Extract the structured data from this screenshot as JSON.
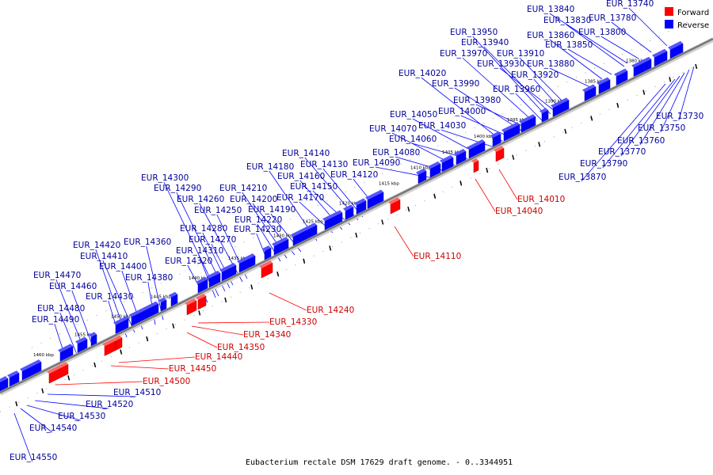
{
  "caption": "Eubacterium rectale DSM 17629 draft genome. - 0..3344951",
  "legend": [
    {
      "label": "Forward",
      "color": "#ff0000"
    },
    {
      "label": "Reverse",
      "color": "#0000ff"
    }
  ],
  "colors": {
    "forward": "#ff0000",
    "reverse": "#0000ff",
    "forward_label": "#cc0000",
    "reverse_label": "#000099",
    "backbone": "#777777"
  },
  "scale": [
    "1380 kbp",
    "1385 kbp",
    "1390 kbp",
    "1395 kbp",
    "1400 kbp",
    "1405 kbp",
    "1410 kbp",
    "1415 kbp",
    "1420 kbp",
    "1425 kbp",
    "1430 kbp",
    "1435 kbp",
    "1440 kbp",
    "1445 kbp",
    "1450 kbp",
    "1455 kbp",
    "1460 kbp"
  ],
  "reverse_genes": [
    "EUR_13740",
    "EUR_13780",
    "EUR_13800",
    "EUR_13830",
    "EUR_13840",
    "EUR_13850",
    "EUR_13860",
    "EUR_13880",
    "EUR_13910",
    "EUR_13920",
    "EUR_13930",
    "EUR_13940",
    "EUR_13950",
    "EUR_13960",
    "EUR_13970",
    "EUR_13980",
    "EUR_13990",
    "EUR_14000",
    "EUR_14020",
    "EUR_14030",
    "EUR_14050",
    "EUR_14060",
    "EUR_14070",
    "EUR_14080",
    "EUR_14090",
    "EUR_14120",
    "EUR_14130",
    "EUR_14140",
    "EUR_14150",
    "EUR_14160",
    "EUR_14170",
    "EUR_14180",
    "EUR_14190",
    "EUR_14200",
    "EUR_14210",
    "EUR_14220",
    "EUR_14230",
    "EUR_14250",
    "EUR_14260",
    "EUR_14270",
    "EUR_14280",
    "EUR_14290",
    "EUR_14300",
    "EUR_14310",
    "EUR_14320",
    "EUR_14360",
    "EUR_14380",
    "EUR_14400",
    "EUR_14410",
    "EUR_14420",
    "EUR_14430",
    "EUR_14460",
    "EUR_14470",
    "EUR_14480",
    "EUR_14490"
  ],
  "forward_genes": [
    "EUR_14010",
    "EUR_14040",
    "EUR_14110",
    "EUR_14240",
    "EUR_14330",
    "EUR_14340",
    "EUR_14350",
    "EUR_14440",
    "EUR_14450",
    "EUR_14500"
  ],
  "other_genes": [
    "EUR_13730",
    "EUR_13750",
    "EUR_13760",
    "EUR_13770",
    "EUR_13790",
    "EUR_13870",
    "EUR_14510",
    "EUR_14520",
    "EUR_14530",
    "EUR_14540",
    "EUR_14550"
  ]
}
